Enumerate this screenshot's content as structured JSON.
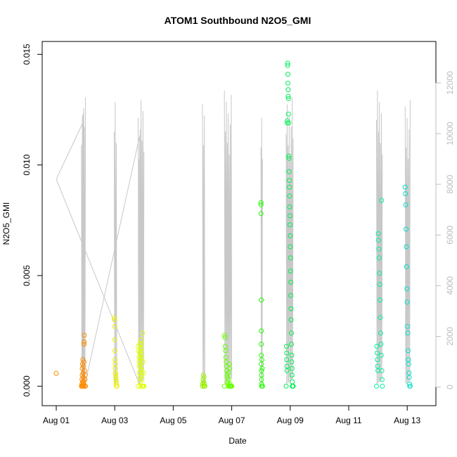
{
  "chart_data": {
    "type": "scatter",
    "title": "ATOM1 Southbound N2O5_GMI",
    "xlabel": "Date",
    "ylabel": "N2O5_GMI",
    "x_ticks": [
      "Aug 01",
      "Aug 03",
      "Aug 05",
      "Aug 07",
      "Aug 09",
      "Aug 11",
      "Aug 13"
    ],
    "y_ticks": [
      "0.000",
      "0.005",
      "0.010",
      "0.015"
    ],
    "y2_ticks": [
      "0",
      "2000",
      "4000",
      "6000",
      "8000",
      "10000",
      "12000"
    ],
    "xlim": [
      "2016-08-01T00:00",
      "2016-08-13T12:00"
    ],
    "ylim": [
      -0.0005,
      0.0152
    ],
    "y2lim": [
      -400,
      13300
    ],
    "colors": {
      "aug01": "#ff8c00",
      "aug02": "#ff8c00",
      "aug03": "#e8ee00",
      "aug04": "#e0ff00",
      "aug06": "#99f000",
      "aug07": "#66ff00",
      "aug08": "#22ff00",
      "aug09": "#00ee55",
      "aug12": "#00eea0",
      "aug13": "#00e0c8",
      "altitude_line": "#c8c8c8"
    },
    "series": [
      {
        "day": "aug01",
        "x": [
          0.0
        ],
        "y": [
          0.00058
        ]
      },
      {
        "day": "aug02",
        "x": [
          0.86,
          0.87,
          0.88,
          0.88,
          0.89,
          0.89,
          0.9,
          0.9,
          0.9,
          0.91,
          0.91,
          0.92,
          0.92,
          0.93,
          0.93,
          0.94,
          0.94,
          0.95,
          0.95,
          0.96,
          0.96,
          0.97,
          0.97,
          0.98,
          0.99,
          1.0
        ],
        "y": [
          0.0,
          0.0,
          0.0001,
          0.0003,
          0.0005,
          0.0008,
          0.001,
          0.0,
          0.0002,
          0.0012,
          0.0,
          0.0006,
          0.0004,
          0.0009,
          0.0,
          0.0001,
          0.0002,
          0.0011,
          0.0019,
          0.002,
          0.0023,
          0.0007,
          0.0,
          0.0003,
          0.0005,
          0.0
        ]
      },
      {
        "day": "aug03",
        "x": [
          1.98,
          1.99,
          2.0,
          2.0,
          2.01,
          2.01,
          2.02,
          2.02,
          2.03,
          2.03,
          2.04,
          2.04,
          2.05,
          2.05,
          2.06,
          2.06,
          2.07
        ],
        "y": [
          0.0031,
          0.003,
          0.0027,
          0.0021,
          0.0016,
          0.0012,
          0.001,
          0.0008,
          0.0006,
          0.0005,
          0.0004,
          0.0003,
          0.0002,
          0.0001,
          0.0,
          0.0,
          0.0
        ]
      },
      {
        "day": "aug04",
        "x": [
          2.8,
          2.81,
          2.82,
          2.83,
          2.84,
          2.84,
          2.85,
          2.85,
          2.86,
          2.86,
          2.87,
          2.87,
          2.88,
          2.88,
          2.89,
          2.89,
          2.9,
          2.9,
          2.91,
          2.91,
          2.92,
          2.92,
          2.93,
          2.93,
          2.94,
          2.95,
          2.96,
          2.97,
          2.98,
          2.99,
          3.0
        ],
        "y": [
          0.0,
          0.0018,
          0.0016,
          0.0013,
          0.0011,
          0.0009,
          0.0015,
          0.0006,
          0.0019,
          0.0004,
          0.0012,
          0.0002,
          0.0017,
          0.0,
          0.0014,
          0.001,
          0.0008,
          0.0021,
          0.0007,
          0.0016,
          0.0005,
          0.0019,
          0.0003,
          0.0013,
          0.0,
          0.0024,
          0.0011,
          0.0,
          0.0006,
          0.0,
          0.0
        ]
      },
      {
        "day": "aug06",
        "x": [
          5.0,
          5.01,
          5.02,
          5.03,
          5.04,
          5.05,
          5.05,
          5.06,
          5.07,
          5.08
        ],
        "y": [
          0.0,
          0.0001,
          0.0003,
          0.0005,
          0.0002,
          0.0004,
          0.0,
          0.0001,
          0.0,
          0.0
        ]
      },
      {
        "day": "aug07",
        "x": [
          5.75,
          5.76,
          5.77,
          5.78,
          5.79,
          5.8,
          5.81,
          5.82,
          5.83,
          5.84,
          5.85,
          5.86,
          5.87,
          5.88,
          5.89,
          5.9,
          5.91,
          5.92,
          5.93,
          5.94,
          5.95,
          5.96,
          5.97,
          5.98,
          5.99,
          6.0
        ],
        "y": [
          0.0,
          0.0023,
          0.0022,
          0.0018,
          0.0016,
          0.0013,
          0.0011,
          0.0009,
          0.0007,
          0.0005,
          0.0004,
          0.0002,
          0.0001,
          0.0,
          0.0006,
          0.0003,
          0.001,
          0.0,
          0.0008,
          0.0001,
          0.0,
          0.0,
          0.0,
          0.0,
          0.0,
          0.0
        ]
      },
      {
        "day": "aug08",
        "x": [
          7.0,
          7.0,
          7.0,
          7.01,
          7.01,
          7.01,
          7.01,
          7.01,
          7.02,
          7.02,
          7.02,
          7.02,
          7.03,
          7.03,
          7.03,
          7.04,
          7.04,
          7.05
        ],
        "y": [
          0.0083,
          0.0082,
          0.0078,
          0.0039,
          0.0025,
          0.0019,
          0.0014,
          0.001,
          0.0007,
          0.0005,
          0.0003,
          0.0001,
          0.0,
          0.0,
          0.0012,
          0.0008,
          0.0,
          0.0
        ]
      },
      {
        "day": "aug09",
        "x": [
          7.86,
          7.87,
          7.88,
          7.88,
          7.89,
          7.89,
          7.9,
          7.9,
          7.91,
          7.91,
          7.92,
          7.92,
          7.93,
          7.93,
          7.94,
          7.94,
          7.95,
          7.95,
          7.96,
          7.96,
          7.97,
          7.97,
          7.98,
          7.98,
          7.99,
          7.99,
          8.0,
          8.0,
          8.01,
          8.01,
          8.02,
          8.02,
          8.03,
          8.03,
          8.04,
          8.04,
          8.05,
          8.05,
          8.06,
          8.06,
          8.07,
          8.07,
          8.08,
          8.08,
          8.09,
          8.1
        ],
        "y": [
          0.0,
          0.0018,
          0.0015,
          0.0012,
          0.0009,
          0.0007,
          0.012,
          0.0119,
          0.0146,
          0.0145,
          0.0141,
          0.0137,
          0.0134,
          0.0131,
          0.013,
          0.0123,
          0.0119,
          0.0104,
          0.0103,
          0.0097,
          0.0093,
          0.009,
          0.0086,
          0.0081,
          0.0077,
          0.0073,
          0.0068,
          0.0063,
          0.0058,
          0.0052,
          0.0047,
          0.0041,
          0.0035,
          0.003,
          0.0024,
          0.0019,
          0.0014,
          0.0011,
          0.0008,
          0.0005,
          0.0002,
          0.0,
          0.0,
          0.0,
          0.0,
          0.0
        ]
      },
      {
        "day": "aug12",
        "x": [
          10.95,
          10.96,
          10.97,
          10.98,
          10.99,
          11.0,
          11.01,
          11.02,
          11.03,
          11.04,
          11.05,
          11.06,
          11.07,
          11.08,
          11.09,
          11.1,
          11.11,
          11.12,
          11.13,
          11.14,
          11.15
        ],
        "y": [
          0.0,
          0.0018,
          0.0015,
          0.0012,
          0.0009,
          0.0007,
          0.0069,
          0.0066,
          0.0062,
          0.0058,
          0.0051,
          0.0046,
          0.0039,
          0.0031,
          0.0024,
          0.0019,
          0.0014,
          0.0084,
          0.0007,
          0.0003,
          0.0
        ]
      },
      {
        "day": "aug13",
        "x": [
          11.93,
          11.94,
          11.95,
          11.96,
          11.97,
          11.98,
          11.99,
          12.0,
          12.01,
          12.02,
          12.03,
          12.04,
          12.05,
          12.06,
          12.07,
          12.08,
          12.09,
          12.1
        ],
        "y": [
          0.009,
          0.0087,
          0.0082,
          0.0071,
          0.0063,
          0.0054,
          0.0044,
          0.0038,
          0.0027,
          0.0024,
          0.0016,
          0.0012,
          0.001,
          0.0006,
          0.0004,
          0.0001,
          0.0,
          0.0
        ]
      }
    ],
    "altitude_line": {
      "x": [
        0.0,
        0.9,
        0.9,
        0.92,
        0.92,
        0.94,
        0.94,
        0.96,
        0.96,
        1.0,
        2.85,
        2.85,
        0.0,
        0.0
      ],
      "y2": [
        8200,
        10400,
        200,
        10800,
        300,
        11000,
        200,
        10200,
        400,
        200,
        9900,
        100,
        8200,
        8200
      ]
    }
  }
}
